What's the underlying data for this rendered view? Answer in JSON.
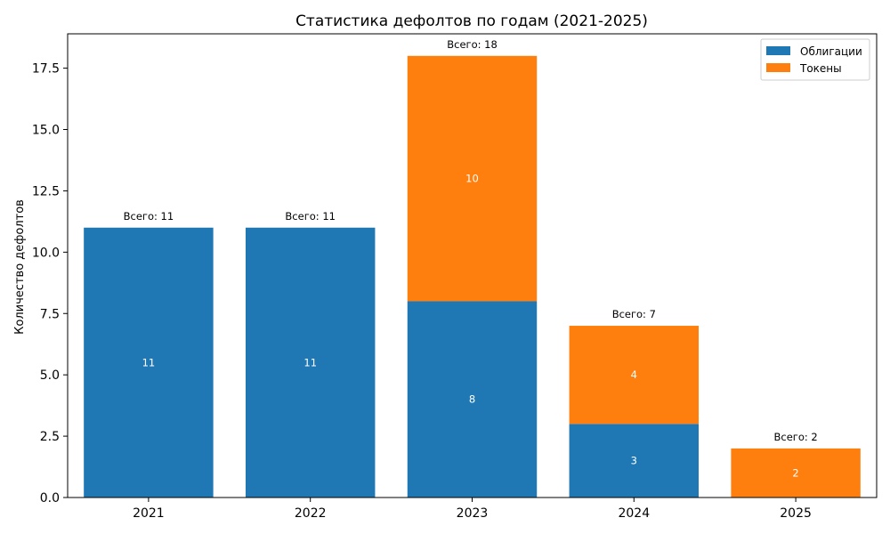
{
  "chart_data": {
    "type": "bar",
    "stacked": true,
    "title": "Статистика дефолтов по годам (2021-2025)",
    "xlabel": "",
    "ylabel": "Количество дефолтов",
    "categories": [
      "2021",
      "2022",
      "2023",
      "2024",
      "2025"
    ],
    "series": [
      {
        "name": "Облигации",
        "values": [
          11,
          11,
          8,
          3,
          0
        ],
        "color": "#1f77b4"
      },
      {
        "name": "Токены",
        "values": [
          0,
          0,
          10,
          4,
          2
        ],
        "color": "#ff7f0e"
      }
    ],
    "totals": [
      11,
      11,
      18,
      7,
      2
    ],
    "total_prefix": "Всего:",
    "ylim": [
      0,
      18.9
    ],
    "yticks": [
      "0.0",
      "2.5",
      "5.0",
      "7.5",
      "10.0",
      "12.5",
      "15.0",
      "17.5"
    ],
    "grid": false,
    "legend_position": "top-right"
  }
}
